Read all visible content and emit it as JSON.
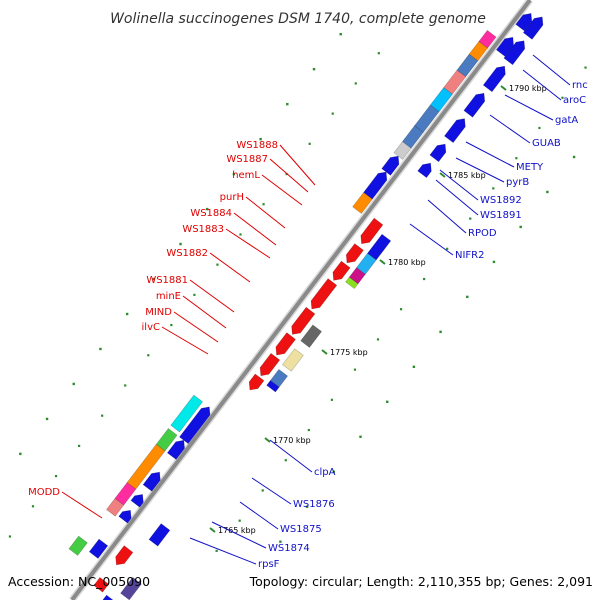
{
  "title": "Wolinella succinogenes DSM 1740, complete genome",
  "footer": {
    "accession": "Accession: NC_005090",
    "summary": "Topology: circular; Length: 2,110,355 bp; Genes: 2,091"
  },
  "colors": {
    "axis": "#888888",
    "tick": "#2e8b2e",
    "red_label": "#e00000",
    "blue_label": "#1010c8",
    "gene_blue": "#1010e0",
    "gene_red": "#ee1111"
  },
  "ticks": [
    {
      "label": "1790 kbp"
    },
    {
      "label": "1785 kbp"
    },
    {
      "label": "1780 kbp"
    },
    {
      "label": "1775 kbp"
    },
    {
      "label": "1770 kbp"
    },
    {
      "label": "1765 kbp"
    }
  ],
  "left_labels": [
    {
      "text": "WS1888"
    },
    {
      "text": "WS1887"
    },
    {
      "text": "hemL"
    },
    {
      "text": "purH"
    },
    {
      "text": "WS1884"
    },
    {
      "text": "WS1883"
    },
    {
      "text": "WS1882"
    },
    {
      "text": "WS1881"
    },
    {
      "text": "minE"
    },
    {
      "text": "MIND"
    },
    {
      "text": "ilvC"
    },
    {
      "text": "MODD"
    }
  ],
  "right_labels": [
    {
      "text": "rnc"
    },
    {
      "text": "aroC"
    },
    {
      "text": "gatA"
    },
    {
      "text": "GUAB"
    },
    {
      "text": "METY"
    },
    {
      "text": "pyrB"
    },
    {
      "text": "WS1892"
    },
    {
      "text": "WS1891"
    },
    {
      "text": "RPOD"
    },
    {
      "text": "NIFR2"
    },
    {
      "text": "clpA"
    },
    {
      "text": "WS1876"
    },
    {
      "text": "WS1875"
    },
    {
      "text": "WS1874"
    },
    {
      "text": "rpsF"
    }
  ]
}
